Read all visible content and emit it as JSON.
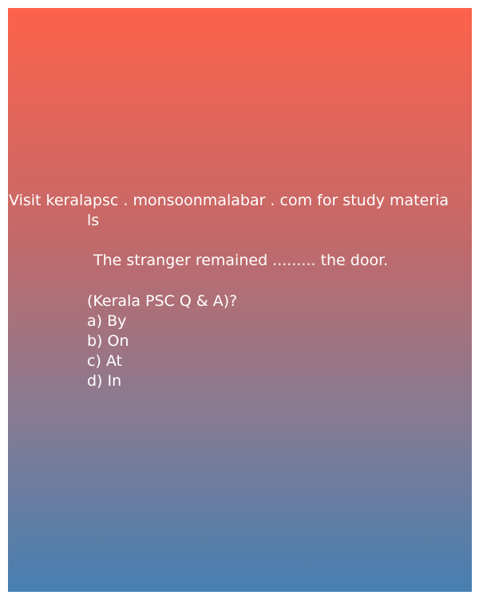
{
  "header": {
    "line1": "Visit keralapsc . monsoonmalabar . com for study materia",
    "line2": "ls"
  },
  "question": "The stranger remained ......... the door.",
  "source": "(Kerala PSC Q & A)?",
  "options": [
    "a) By",
    "b) On",
    "c) At",
    "d) In"
  ],
  "colors": {
    "gradient_top": "#fd624b",
    "gradient_bottom": "#467fb1",
    "text": "#ffffff"
  }
}
